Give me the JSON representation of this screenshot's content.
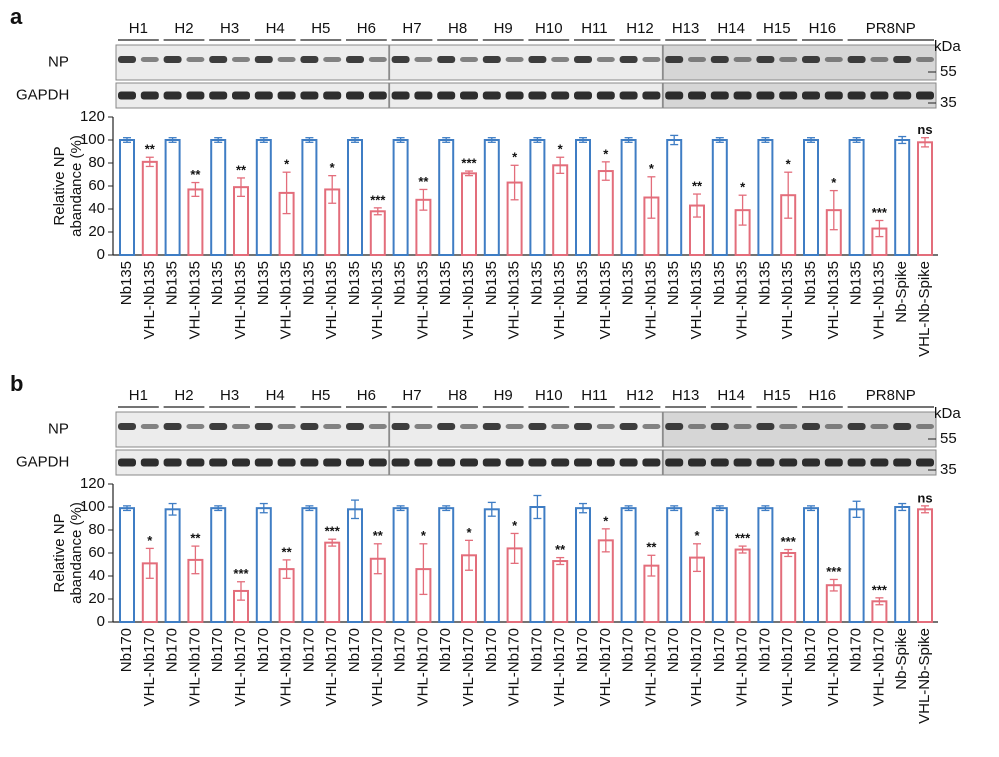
{
  "panels": [
    {
      "label": "a",
      "blot": {
        "groups": [
          "H1",
          "H2",
          "H3",
          "H4",
          "H5",
          "H6",
          "H7",
          "H8",
          "H9",
          "H10",
          "H11",
          "H12",
          "H13",
          "H14",
          "H15",
          "H16",
          "PR8NP"
        ],
        "rows": [
          "NP",
          "GAPDH"
        ],
        "unit": "kDa",
        "markers": [
          55,
          35
        ]
      }
    },
    {
      "label": "b",
      "blot": {
        "groups": [
          "H1",
          "H2",
          "H3",
          "H4",
          "H5",
          "H6",
          "H7",
          "H8",
          "H9",
          "H10",
          "H11",
          "H12",
          "H13",
          "H14",
          "H15",
          "H16",
          "PR8NP"
        ],
        "rows": [
          "NP",
          "GAPDH"
        ],
        "unit": "kDa",
        "markers": [
          55,
          35
        ]
      }
    }
  ],
  "chart_data": [
    {
      "type": "bar",
      "ylabel": [
        "Relative NP",
        "abandance (%)"
      ],
      "categories": [
        "Nb135",
        "VHL-Nb135",
        "Nb135",
        "VHL-Nb135",
        "Nb135",
        "VHL-Nb135",
        "Nb135",
        "VHL-Nb135",
        "Nb135",
        "VHL-Nb135",
        "Nb135",
        "VHL-Nb135",
        "Nb135",
        "VHL-Nb135",
        "Nb135",
        "VHL-Nb135",
        "Nb135",
        "VHL-Nb135",
        "Nb135",
        "VHL-Nb135",
        "Nb135",
        "VHL-Nb135",
        "Nb135",
        "VHL-Nb135",
        "Nb135",
        "VHL-Nb135",
        "Nb135",
        "VHL-Nb135",
        "Nb135",
        "VHL-Nb135",
        "Nb135",
        "VHL-Nb135",
        "Nb135",
        "VHL-Nb135",
        "Nb-Spike",
        "VHL-Nb-Spike"
      ],
      "values": [
        100,
        81,
        100,
        57,
        100,
        59,
        100,
        54,
        100,
        57,
        100,
        38,
        100,
        48,
        100,
        71,
        100,
        63,
        100,
        78,
        100,
        73,
        100,
        50,
        100,
        43,
        100,
        39,
        100,
        52,
        100,
        39,
        100,
        23,
        100,
        98
      ],
      "errors": [
        2,
        4,
        2,
        6,
        2,
        8,
        2,
        18,
        2,
        12,
        2,
        3,
        2,
        9,
        2,
        2,
        2,
        15,
        2,
        7,
        2,
        8,
        2,
        18,
        4,
        10,
        2,
        13,
        2,
        20,
        2,
        17,
        2,
        7,
        3,
        4
      ],
      "annotations": [
        null,
        "**",
        null,
        "**",
        null,
        "**",
        null,
        "*",
        null,
        "*",
        null,
        "***",
        null,
        "**",
        null,
        "***",
        null,
        "*",
        null,
        "*",
        null,
        "*",
        null,
        "*",
        null,
        "**",
        null,
        "*",
        null,
        "*",
        null,
        "*",
        null,
        "***",
        null,
        "ns"
      ],
      "colors": [
        "#3f7dc4",
        "#e36d7b"
      ],
      "ylim": [
        0,
        120
      ],
      "yticks": [
        0,
        20,
        40,
        60,
        80,
        100,
        120
      ]
    },
    {
      "type": "bar",
      "ylabel": [
        "Relative NP",
        "abandance (%)"
      ],
      "categories": [
        "Nb170",
        "VHL-Nb170",
        "Nb170",
        "VHL-Nb170",
        "Nb170",
        "VHL-Nb170",
        "Nb170",
        "VHL-Nb170",
        "Nb170",
        "VHL-Nb170",
        "Nb170",
        "VHL-Nb170",
        "Nb170",
        "VHL-Nb170",
        "Nb170",
        "VHL-Nb170",
        "Nb170",
        "VHL-Nb170",
        "Nb170",
        "VHL-Nb170",
        "Nb170",
        "VHL-Nb170",
        "Nb170",
        "VHL-Nb170",
        "Nb170",
        "VHL-Nb170",
        "Nb170",
        "VHL-Nb170",
        "Nb170",
        "VHL-Nb170",
        "Nb170",
        "VHL-Nb170",
        "Nb170",
        "VHL-Nb170",
        "Nb-Spike",
        "VHL-Nb-Spike"
      ],
      "values": [
        99,
        51,
        98,
        54,
        99,
        27,
        99,
        46,
        99,
        69,
        98,
        55,
        99,
        46,
        99,
        58,
        98,
        64,
        100,
        53,
        99,
        71,
        99,
        49,
        99,
        56,
        99,
        63,
        99,
        60,
        99,
        32,
        98,
        18,
        100,
        98
      ],
      "errors": [
        2,
        13,
        5,
        12,
        2,
        8,
        4,
        8,
        2,
        3,
        8,
        13,
        2,
        22,
        2,
        13,
        6,
        13,
        10,
        3,
        4,
        10,
        2,
        9,
        2,
        12,
        2,
        3,
        2,
        3,
        2,
        5,
        7,
        3,
        3,
        3
      ],
      "annotations": [
        null,
        "*",
        null,
        "**",
        null,
        "***",
        null,
        "**",
        null,
        "***",
        null,
        "**",
        null,
        "*",
        null,
        "*",
        null,
        "*",
        null,
        "**",
        null,
        "*",
        null,
        "**",
        null,
        "*",
        null,
        "***",
        null,
        "***",
        null,
        "***",
        null,
        "***",
        null,
        "ns"
      ],
      "colors": [
        "#3f7dc4",
        "#e36d7b"
      ],
      "ylim": [
        0,
        120
      ],
      "yticks": [
        0,
        20,
        40,
        60,
        80,
        100,
        120
      ]
    }
  ]
}
